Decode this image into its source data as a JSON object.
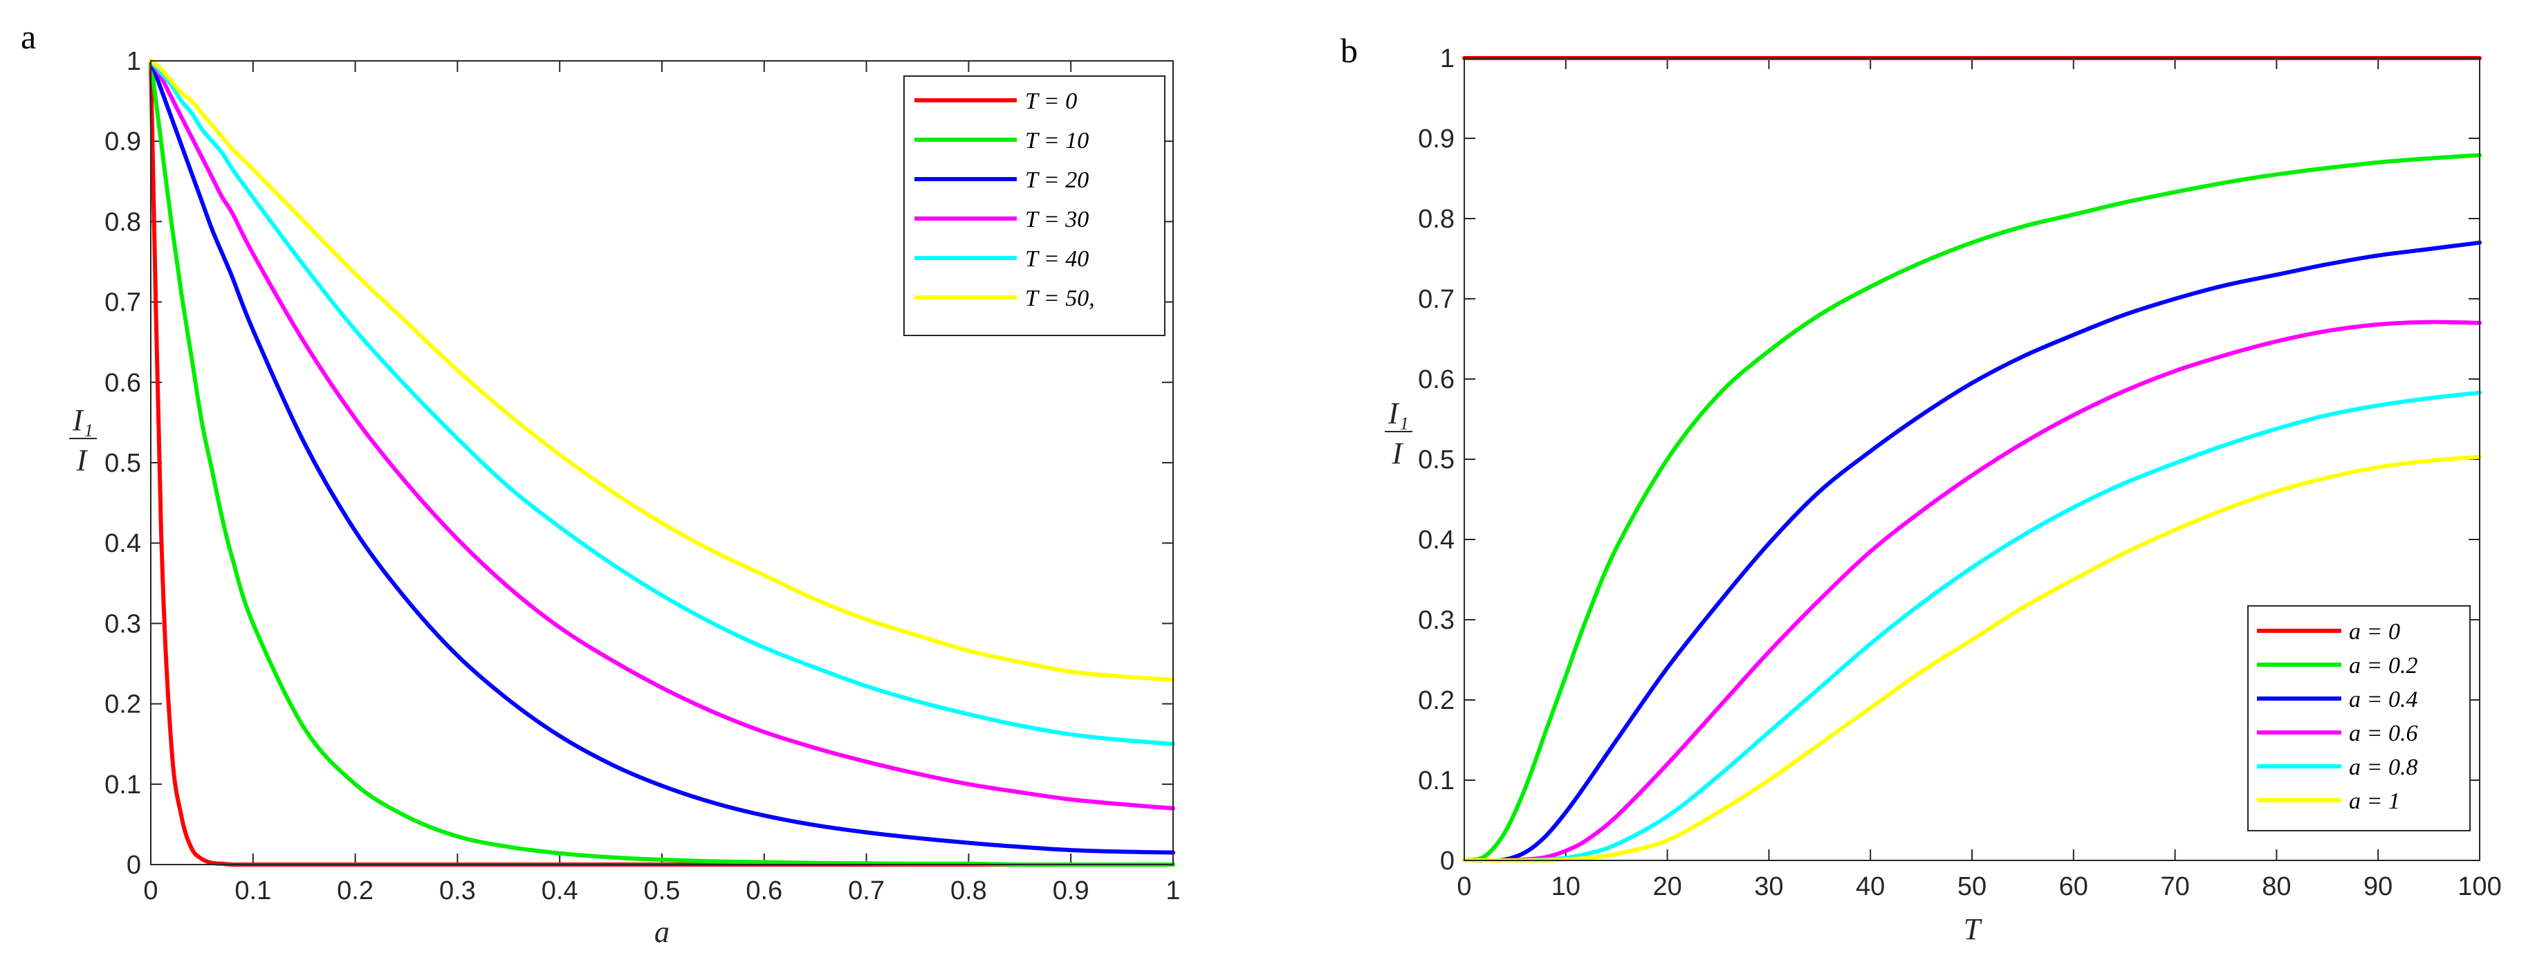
{
  "chart_data": [
    {
      "panel_label": "a",
      "type": "line",
      "xlabel": "a",
      "ylabel_num": "I₁",
      "ylabel_den": "I",
      "xlim": [
        0,
        1
      ],
      "ylim": [
        0,
        1
      ],
      "xticks": [
        "0",
        "0.1",
        "0.2",
        "0.3",
        "0.4",
        "0.5",
        "0.6",
        "0.7",
        "0.8",
        "0.9",
        "1"
      ],
      "yticks": [
        "0",
        "0.1",
        "0.2",
        "0.3",
        "0.4",
        "0.5",
        "0.6",
        "0.7",
        "0.8",
        "0.9",
        "1"
      ],
      "legend_position": "top-right",
      "x": [
        0,
        0.01,
        0.02,
        0.03,
        0.04,
        0.05,
        0.06,
        0.07,
        0.08,
        0.1,
        0.15,
        0.2,
        0.25,
        0.3,
        0.35,
        0.4,
        0.45,
        0.5,
        0.55,
        0.6,
        0.65,
        0.7,
        0.75,
        0.8,
        0.85,
        0.9,
        0.95,
        1
      ],
      "series": [
        {
          "name": "T = 0",
          "color": "#ff0000",
          "values": [
            1,
            0.42,
            0.15,
            0.06,
            0.02,
            0.007,
            0.002,
            0.001,
            0,
            0,
            0,
            0,
            0,
            0,
            0,
            0,
            0,
            0,
            0,
            0,
            0,
            0,
            0,
            0,
            0,
            0,
            0,
            0
          ]
        },
        {
          "name": "T = 10",
          "color": "#00ee00",
          "values": [
            1,
            0.9,
            0.8,
            0.71,
            0.63,
            0.55,
            0.49,
            0.43,
            0.38,
            0.3,
            0.17,
            0.1,
            0.06,
            0.035,
            0.022,
            0.014,
            0.009,
            0.006,
            0.004,
            0.003,
            0.002,
            0.0015,
            0.001,
            0.001,
            0,
            0,
            0,
            0
          ]
        },
        {
          "name": "T = 20",
          "color": "#0000ff",
          "values": [
            1,
            0.965,
            0.93,
            0.895,
            0.86,
            0.825,
            0.79,
            0.76,
            0.73,
            0.665,
            0.525,
            0.415,
            0.33,
            0.26,
            0.205,
            0.16,
            0.125,
            0.098,
            0.077,
            0.061,
            0.049,
            0.04,
            0.033,
            0.027,
            0.022,
            0.018,
            0.016,
            0.015
          ]
        },
        {
          "name": "T = 30",
          "color": "#ff00ff",
          "values": [
            1,
            0.98,
            0.955,
            0.93,
            0.905,
            0.88,
            0.855,
            0.83,
            0.81,
            0.76,
            0.65,
            0.555,
            0.475,
            0.405,
            0.345,
            0.295,
            0.255,
            0.22,
            0.19,
            0.165,
            0.145,
            0.128,
            0.113,
            0.1,
            0.09,
            0.081,
            0.075,
            0.07
          ]
        },
        {
          "name": "T = 40",
          "color": "#00ffff",
          "values": [
            1,
            0.985,
            0.97,
            0.95,
            0.935,
            0.915,
            0.9,
            0.885,
            0.865,
            0.83,
            0.745,
            0.665,
            0.595,
            0.53,
            0.47,
            0.42,
            0.375,
            0.335,
            0.3,
            0.27,
            0.245,
            0.222,
            0.203,
            0.187,
            0.173,
            0.162,
            0.155,
            0.15
          ]
        },
        {
          "name": "T = 50,",
          "color": "#ffff00",
          "values": [
            1,
            0.99,
            0.975,
            0.96,
            0.95,
            0.935,
            0.92,
            0.905,
            0.89,
            0.865,
            0.8,
            0.735,
            0.675,
            0.615,
            0.56,
            0.51,
            0.465,
            0.425,
            0.39,
            0.36,
            0.33,
            0.305,
            0.285,
            0.266,
            0.252,
            0.24,
            0.234,
            0.23
          ]
        }
      ]
    },
    {
      "panel_label": "b",
      "type": "line",
      "xlabel": "T",
      "ylabel_num": "I₁",
      "ylabel_den": "I",
      "xlim": [
        0,
        100
      ],
      "ylim": [
        0,
        1
      ],
      "xticks": [
        "0",
        "10",
        "20",
        "30",
        "40",
        "50",
        "60",
        "70",
        "80",
        "90",
        "100"
      ],
      "yticks": [
        "0",
        "0.1",
        "0.2",
        "0.3",
        "0.4",
        "0.5",
        "0.6",
        "0.7",
        "0.8",
        "0.9",
        "1"
      ],
      "legend_position": "bottom-right",
      "x": [
        0,
        2,
        4,
        6,
        8,
        10,
        12,
        15,
        20,
        25,
        30,
        35,
        40,
        45,
        50,
        55,
        60,
        65,
        70,
        75,
        80,
        85,
        90,
        95,
        100
      ],
      "series": [
        {
          "name": "a = 0",
          "color": "#ff0000",
          "values": [
            1,
            1,
            1,
            1,
            1,
            1,
            1,
            1,
            1,
            1,
            1,
            1,
            1,
            1,
            1,
            1,
            1,
            1,
            1,
            1,
            1,
            1,
            1,
            1,
            1
          ]
        },
        {
          "name": "a = 0.2",
          "color": "#00ee00",
          "values": [
            0,
            0.005,
            0.035,
            0.09,
            0.16,
            0.23,
            0.3,
            0.39,
            0.5,
            0.58,
            0.635,
            0.68,
            0.715,
            0.745,
            0.77,
            0.79,
            0.805,
            0.82,
            0.833,
            0.845,
            0.855,
            0.863,
            0.87,
            0.875,
            0.879
          ]
        },
        {
          "name": "a = 0.4",
          "color": "#0000ff",
          "values": [
            0,
            0,
            0.001,
            0.01,
            0.03,
            0.06,
            0.095,
            0.15,
            0.24,
            0.32,
            0.395,
            0.46,
            0.51,
            0.555,
            0.595,
            0.628,
            0.655,
            0.68,
            0.7,
            0.717,
            0.73,
            0.743,
            0.754,
            0.762,
            0.77
          ]
        },
        {
          "name": "a = 0.6",
          "color": "#ff00ff",
          "values": [
            0,
            0,
            0,
            0.001,
            0.004,
            0.012,
            0.025,
            0.055,
            0.12,
            0.19,
            0.26,
            0.325,
            0.385,
            0.435,
            0.48,
            0.52,
            0.555,
            0.585,
            0.61,
            0.63,
            0.647,
            0.66,
            0.668,
            0.671,
            0.67
          ]
        },
        {
          "name": "a = 0.8",
          "color": "#00ffff",
          "values": [
            0,
            0,
            0,
            0,
            0.001,
            0.003,
            0.008,
            0.02,
            0.055,
            0.105,
            0.16,
            0.215,
            0.27,
            0.32,
            0.365,
            0.405,
            0.44,
            0.47,
            0.495,
            0.518,
            0.538,
            0.555,
            0.567,
            0.576,
            0.583
          ]
        },
        {
          "name": "a = 1",
          "color": "#ffff00",
          "values": [
            0,
            0,
            0,
            0,
            0,
            0.001,
            0.003,
            0.008,
            0.025,
            0.06,
            0.1,
            0.145,
            0.19,
            0.235,
            0.275,
            0.315,
            0.35,
            0.383,
            0.412,
            0.438,
            0.46,
            0.477,
            0.49,
            0.498,
            0.503
          ]
        }
      ]
    }
  ]
}
